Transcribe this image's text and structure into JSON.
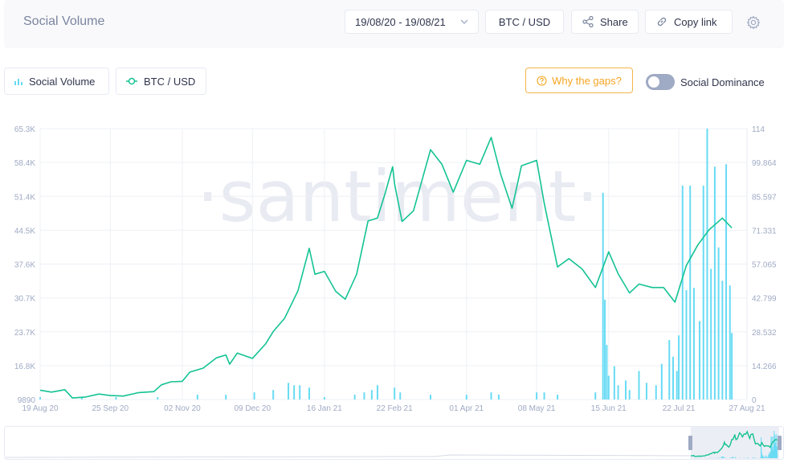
{
  "header": {
    "title": "Social Volume",
    "date_range": "19/08/20 - 19/08/21",
    "pair_label": "BTC / USD",
    "share_label": "Share",
    "copy_link_label": "Copy link"
  },
  "metrics": {
    "social_volume_label": "Social Volume",
    "btc_label": "BTC / USD",
    "gaps_label": "Why the gaps?",
    "dominance_label": "Social Dominance"
  },
  "colors": {
    "price_line": "#14c393",
    "volume_bars": "#68dbf4",
    "warning": "#f4a523",
    "watermark": "#e9ebf3"
  },
  "watermark": "·santiment·",
  "chart_data": {
    "type": "line",
    "x_ticks": [
      "19 Aug 20",
      "25 Sep 20",
      "02 Nov 20",
      "09 Dec 20",
      "16 Jan 21",
      "22 Feb 21",
      "01 Apr 21",
      "08 May 21",
      "15 Jun 21",
      "22 Jul 21",
      "27 Aug 21"
    ],
    "left_axis_ticks": [
      "65.3K",
      "58.4K",
      "51.4K",
      "44.5K",
      "37.6K",
      "30.7K",
      "23.7K",
      "16.8K",
      "9890"
    ],
    "right_axis_ticks": [
      "114",
      "99.864",
      "85.597",
      "71.331",
      "57.065",
      "42.799",
      "28.532",
      "14.266",
      "0"
    ],
    "left_ylim": [
      9890,
      65300
    ],
    "right_ylim": [
      0,
      114
    ],
    "series": [
      {
        "name": "BTC / USD",
        "axis": "left",
        "style": "line",
        "points": [
          [
            "19 Aug 20",
            11800
          ],
          [
            "25 Aug 20",
            11400
          ],
          [
            "01 Sep 20",
            11900
          ],
          [
            "05 Sep 20",
            10200
          ],
          [
            "12 Sep 20",
            10400
          ],
          [
            "19 Sep 20",
            11000
          ],
          [
            "25 Sep 20",
            10700
          ],
          [
            "02 Oct 20",
            10600
          ],
          [
            "10 Oct 20",
            11300
          ],
          [
            "18 Oct 20",
            11500
          ],
          [
            "22 Oct 20",
            12900
          ],
          [
            "27 Oct 20",
            13500
          ],
          [
            "02 Nov 20",
            13600
          ],
          [
            "06 Nov 20",
            15500
          ],
          [
            "13 Nov 20",
            16300
          ],
          [
            "20 Nov 20",
            18400
          ],
          [
            "25 Nov 20",
            19000
          ],
          [
            "27 Nov 20",
            17100
          ],
          [
            "01 Dec 20",
            19400
          ],
          [
            "09 Dec 20",
            18300
          ],
          [
            "16 Dec 20",
            21300
          ],
          [
            "20 Dec 20",
            23800
          ],
          [
            "26 Dec 20",
            26500
          ],
          [
            "02 Jan 21",
            32100
          ],
          [
            "08 Jan 21",
            40800
          ],
          [
            "11 Jan 21",
            35500
          ],
          [
            "16 Jan 21",
            36100
          ],
          [
            "22 Jan 21",
            32000
          ],
          [
            "27 Jan 21",
            30400
          ],
          [
            "02 Feb 21",
            35500
          ],
          [
            "08 Feb 21",
            46400
          ],
          [
            "13 Feb 21",
            47000
          ],
          [
            "17 Feb 21",
            52000
          ],
          [
            "21 Feb 21",
            57500
          ],
          [
            "22 Feb 21",
            54000
          ],
          [
            "26 Feb 21",
            46300
          ],
          [
            "04 Mar 21",
            48500
          ],
          [
            "13 Mar 21",
            61000
          ],
          [
            "19 Mar 21",
            58000
          ],
          [
            "25 Mar 21",
            52300
          ],
          [
            "01 Apr 21",
            58800
          ],
          [
            "08 Apr 21",
            58000
          ],
          [
            "14 Apr 21",
            63500
          ],
          [
            "19 Apr 21",
            56000
          ],
          [
            "25 Apr 21",
            49000
          ],
          [
            "30 Apr 21",
            57700
          ],
          [
            "08 May 21",
            58800
          ],
          [
            "12 May 21",
            50000
          ],
          [
            "19 May 21",
            37000
          ],
          [
            "25 May 21",
            38700
          ],
          [
            "01 Jun 21",
            36600
          ],
          [
            "08 Jun 21",
            32800
          ],
          [
            "15 Jun 21",
            40100
          ],
          [
            "20 Jun 21",
            35600
          ],
          [
            "26 Jun 21",
            31700
          ],
          [
            "01 Jul 21",
            33500
          ],
          [
            "08 Jul 21",
            32800
          ],
          [
            "14 Jul 21",
            32800
          ],
          [
            "20 Jul 21",
            29800
          ],
          [
            "26 Jul 21",
            37300
          ],
          [
            "01 Aug 21",
            41500
          ],
          [
            "07 Aug 21",
            44600
          ],
          [
            "14 Aug 21",
            47000
          ],
          [
            "19 Aug 21",
            45000
          ]
        ]
      },
      {
        "name": "Social Volume",
        "axis": "right",
        "style": "bar",
        "points": [
          [
            "19 Aug 20",
            1
          ],
          [
            "10 Sep 20",
            1
          ],
          [
            "28 Sep 20",
            1
          ],
          [
            "20 Oct 20",
            1
          ],
          [
            "10 Nov 20",
            2
          ],
          [
            "25 Nov 20",
            2
          ],
          [
            "10 Dec 20",
            3
          ],
          [
            "20 Dec 20",
            4
          ],
          [
            "28 Dec 20",
            7
          ],
          [
            "31 Dec 20",
            6
          ],
          [
            "03 Jan 21",
            6
          ],
          [
            "08 Jan 21",
            5
          ],
          [
            "16 Jan 21",
            1
          ],
          [
            "01 Feb 21",
            2
          ],
          [
            "06 Feb 21",
            3
          ],
          [
            "10 Feb 21",
            4
          ],
          [
            "13 Feb 21",
            6
          ],
          [
            "22 Feb 21",
            5
          ],
          [
            "25 Feb 21",
            3
          ],
          [
            "13 Mar 21",
            2
          ],
          [
            "01 Apr 21",
            2
          ],
          [
            "14 Apr 21",
            3
          ],
          [
            "18 Apr 21",
            2
          ],
          [
            "08 May 21",
            3
          ],
          [
            "12 May 21",
            3
          ],
          [
            "19 May 21",
            2
          ],
          [
            "08 Jun 21",
            3
          ],
          [
            "12 Jun 21",
            87
          ],
          [
            "13 Jun 21",
            42
          ],
          [
            "14 Jun 21",
            23
          ],
          [
            "15 Jun 21",
            10
          ],
          [
            "18 Jun 21",
            14
          ],
          [
            "20 Jun 21",
            6
          ],
          [
            "24 Jun 21",
            8
          ],
          [
            "26 Jun 21",
            4
          ],
          [
            "01 Jul 21",
            12
          ],
          [
            "05 Jul 21",
            7
          ],
          [
            "10 Jul 21",
            6
          ],
          [
            "13 Jul 21",
            15
          ],
          [
            "17 Jul 21",
            25
          ],
          [
            "19 Jul 21",
            18
          ],
          [
            "21 Jul 21",
            12
          ],
          [
            "22 Jul 21",
            27
          ],
          [
            "24 Jul 21",
            90
          ],
          [
            "26 Jul 21",
            46
          ],
          [
            "28 Jul 21",
            90
          ],
          [
            "30 Jul 21",
            47
          ],
          [
            "02 Aug 21",
            33
          ],
          [
            "04 Aug 21",
            90
          ],
          [
            "06 Aug 21",
            114
          ],
          [
            "08 Aug 21",
            55
          ],
          [
            "10 Aug 21",
            98
          ],
          [
            "12 Aug 21",
            64
          ],
          [
            "14 Aug 21",
            50
          ],
          [
            "16 Aug 21",
            99
          ],
          [
            "18 Aug 21",
            48
          ],
          [
            "19 Aug 21",
            28
          ]
        ]
      }
    ],
    "grid": true,
    "legend": "top-left"
  }
}
